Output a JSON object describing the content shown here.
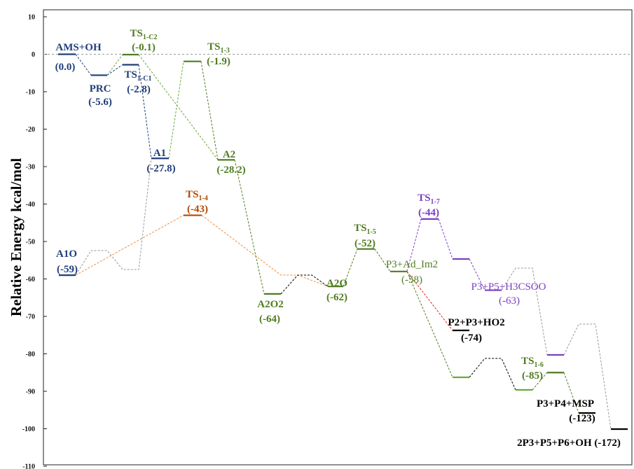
{
  "chart_data": {
    "type": "energy-profile",
    "ylabel": "Relative Energy kcal/mol",
    "ylim": [
      -110,
      10
    ],
    "yticks": [
      10,
      0,
      -10,
      -20,
      -30,
      -40,
      -50,
      -60,
      -70,
      -80,
      -90,
      -100,
      -110
    ],
    "zero_line": true,
    "colors": {
      "blue": "#1f3d7a",
      "green": "#4f7c1f",
      "lightgreen": "#6aaa3a",
      "orange": "#f08a3c",
      "brown": "#b34a00",
      "purple": "#7a3fbf",
      "black": "#000000",
      "grey": "#9a9a9a",
      "red": "#e02020"
    },
    "levels": [
      {
        "id": "AMS",
        "name": "AMS+OH",
        "value": "(0.0)",
        "energy": 0.0,
        "color": "blue"
      },
      {
        "id": "PRC",
        "name": "PRC",
        "value": "(-5.6)",
        "energy": -5.6,
        "color": "blue"
      },
      {
        "id": "TSC2",
        "name": "TS1-C2",
        "name_main": "TS",
        "name_sub": "1-C2",
        "value": "(-0.1)",
        "energy": -0.1,
        "color": "green"
      },
      {
        "id": "TSC1",
        "name": "TS1-C1",
        "name_main": "TS",
        "name_sub": "1-C1",
        "value": "(-2.8)",
        "energy": -2.8,
        "color": "blue"
      },
      {
        "id": "TS13",
        "name": "TS1-3",
        "name_main": "TS",
        "name_sub": "1-3",
        "value": "(-1.9)",
        "energy": -1.9,
        "color": "green"
      },
      {
        "id": "A1",
        "name": "A1",
        "value": "(-27.8)",
        "energy": -27.8,
        "color": "blue"
      },
      {
        "id": "A2",
        "name": "A2",
        "value": "(-28.2)",
        "energy": -28.2,
        "color": "green"
      },
      {
        "id": "TS14",
        "name": "TS1-4",
        "name_main": "TS",
        "name_sub": "1-4",
        "value": "(-43)",
        "energy": -43,
        "color": "brown"
      },
      {
        "id": "A1O",
        "name": "A1O",
        "value": "(-59)",
        "energy": -59,
        "color": "blue"
      },
      {
        "id": "A2O2",
        "name": "A2O2",
        "value": "(-64)",
        "energy": -64,
        "color": "green"
      },
      {
        "id": "A2O",
        "name": "A2O",
        "value": "(-62)",
        "energy": -62,
        "color": "green"
      },
      {
        "id": "TS15",
        "name": "TS1-5",
        "name_main": "TS",
        "name_sub": "1-5",
        "value": "(-52)",
        "energy": -52,
        "color": "green"
      },
      {
        "id": "P3AdIm2",
        "name": "P3+Ad_Im2",
        "value": "(-58)",
        "energy": -58,
        "color": "green"
      },
      {
        "id": "TS17",
        "name": "TS1-7",
        "name_main": "TS",
        "name_sub": "1-7",
        "value": "(-44)",
        "energy": -44,
        "color": "purple"
      },
      {
        "id": "P3P5H3CSOO",
        "name": "P3+P5+H3CSOO",
        "value": "(-63)",
        "energy": -63,
        "color": "purple"
      },
      {
        "id": "P2P3HO2",
        "name": "P2+P3+HO2",
        "value": "(-74)",
        "energy": -74,
        "color": "black"
      },
      {
        "id": "TS16",
        "name": "TS1-6",
        "name_main": "TS",
        "name_sub": "1-6",
        "value": "(-85)",
        "energy": -85,
        "color": "green"
      },
      {
        "id": "P3P4MSP",
        "name": "P3+P4+MSP",
        "value": "(-123)",
        "energy": -123,
        "color": "black"
      },
      {
        "id": "2P3P5P6OH",
        "name": "2P3+P5+P6+OH",
        "value": "(-172)",
        "energy": -172,
        "color": "black"
      }
    ]
  }
}
